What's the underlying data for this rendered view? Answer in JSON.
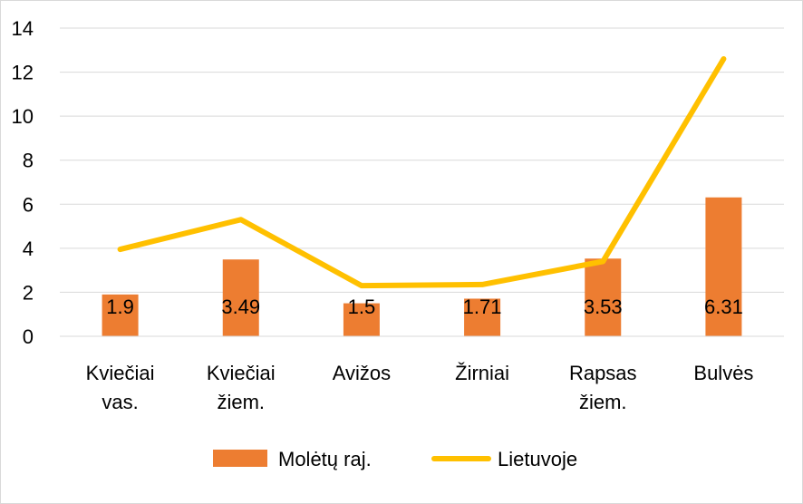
{
  "chart_data": {
    "type": "bar",
    "categories": [
      [
        "Kviečiai",
        "vas."
      ],
      [
        "Kviečiai",
        "žiem."
      ],
      [
        "Avižos"
      ],
      [
        "Žirniai"
      ],
      [
        "Rapsas",
        "žiem."
      ],
      [
        "Bulvės"
      ]
    ],
    "series": [
      {
        "name": "Molėtų raj.",
        "kind": "bar",
        "color": "#ED7D31",
        "values": [
          1.9,
          3.49,
          1.5,
          1.71,
          3.53,
          6.31
        ],
        "labels": [
          "1.9",
          "3.49",
          "1.5",
          "1.71",
          "3.53",
          "6.31"
        ]
      },
      {
        "name": "Lietuvoje",
        "kind": "line",
        "color": "#FFC000",
        "values": [
          3.95,
          5.3,
          2.3,
          2.35,
          3.4,
          12.6
        ]
      }
    ],
    "yticks": [
      "0",
      "2",
      "4",
      "6",
      "8",
      "10",
      "12",
      "14"
    ],
    "ylim": [
      0,
      14
    ],
    "grid": true,
    "legend_position": "bottom"
  }
}
